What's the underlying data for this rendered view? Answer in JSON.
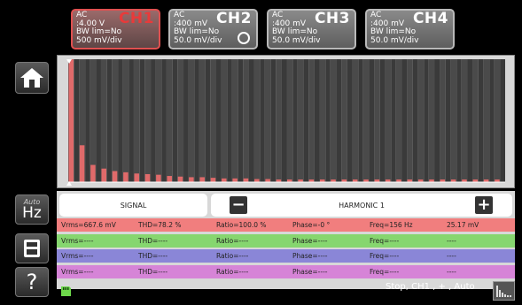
{
  "channels": [
    {
      "name": "CH1",
      "coupling": "AC",
      "range": ":4.00 V",
      "bw": "BW lim=No",
      "div": "500 mV/div",
      "active": true
    },
    {
      "name": "CH2",
      "coupling": "AC",
      "range": ":400 mV",
      "bw": "BW lim=No",
      "div": "50.0 mV/div",
      "active": false
    },
    {
      "name": "CH3",
      "coupling": "AC",
      "range": ":400 mV",
      "bw": "BW lim=No",
      "div": "50.0 mV/div",
      "active": false
    },
    {
      "name": "CH4",
      "coupling": "AC",
      "range": ":400 mV",
      "bw": "BW lim=No",
      "div": "50.0 mV/div",
      "active": false
    }
  ],
  "sidebar": {
    "auto_label": "Auto",
    "hz_label": "Hz",
    "help_label": "?"
  },
  "table": {
    "signal_header": "SIGNAL",
    "harmonic_header": "HARMONIC 1",
    "minus_label": "−",
    "plus_label": "+",
    "rows": [
      {
        "vrms": "Vrms=667.6 mV",
        "thd": "THD=78.2 %",
        "ratio": "Ratio=100.0 %",
        "phase": "Phase=-0 °",
        "freq": "Freq=156 Hz",
        "value": "25.17 mV",
        "color": "#f17e7e"
      },
      {
        "vrms": "Vrms=----",
        "thd": "THD=----",
        "ratio": "Ratio=----",
        "phase": "Phase=----",
        "freq": "Freq=----",
        "value": "----",
        "color": "#86d66f"
      },
      {
        "vrms": "Vrms=----",
        "thd": "THD=----",
        "ratio": "Ratio=----",
        "phase": "Phase=----",
        "freq": "Freq=----",
        "value": "----",
        "color": "#8a86d7"
      },
      {
        "vrms": "Vrms=----",
        "thd": "THD=----",
        "ratio": "Ratio=----",
        "phase": "Phase=----",
        "freq": "Freq=----",
        "value": "----",
        "color": "#d684d7"
      }
    ]
  },
  "status": "Stop, CH1 , + , Auto",
  "spectrum": {
    "harmonic_count": 40,
    "levels": [
      1.0,
      0.3,
      0.14,
      0.11,
      0.09,
      0.08,
      0.07,
      0.065,
      0.06,
      0.05,
      0.045,
      0.04,
      0.04,
      0.035,
      0.03,
      0.03,
      0.03,
      0.025,
      0.025,
      0.02,
      0.02,
      0.02,
      0.02,
      0.015,
      0.015,
      0.015,
      0.015,
      0.01,
      0.01,
      0.01,
      0.01,
      0.01,
      0.01,
      0.01,
      0.01,
      0.01,
      0.01,
      0.01,
      0.01,
      0.01
    ],
    "bar_color": "#e06a6a"
  },
  "icons": {
    "home": "home-icon",
    "memory": "memory-icon",
    "sd": "sd-card-icon",
    "mini_graph": "spectrum-mini-icon"
  }
}
